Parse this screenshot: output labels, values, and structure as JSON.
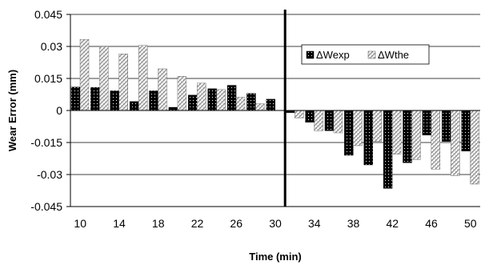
{
  "chart_data": {
    "type": "bar",
    "title": "",
    "xlabel": "Time (min)",
    "ylabel": "Wear Error  (mm)",
    "categories": [
      10,
      12,
      14,
      16,
      18,
      20,
      22,
      24,
      26,
      28,
      30,
      32,
      34,
      36,
      38,
      40,
      42,
      44,
      46,
      48,
      50
    ],
    "x_tick_labels": [
      "10",
      "14",
      "18",
      "22",
      "26",
      "30",
      "34",
      "38",
      "42",
      "46",
      "50"
    ],
    "y_tick_labels": [
      "0.045",
      "0.03",
      "0.015",
      "0",
      "-0.015",
      "-0.03",
      "-0.045"
    ],
    "ylim": [
      -0.045,
      0.045
    ],
    "grid": true,
    "legend_position": "upper-right",
    "divider_after_category": 30,
    "series": [
      {
        "name": "ΔWexp",
        "color": "#000000",
        "pattern": "dotted-black",
        "values": [
          0.011,
          0.0108,
          0.0092,
          0.0042,
          0.0092,
          0.0015,
          0.0072,
          0.0102,
          0.0118,
          0.008,
          0.0053,
          -0.001,
          -0.0055,
          -0.0095,
          -0.021,
          -0.0255,
          -0.0365,
          -0.0245,
          -0.0115,
          -0.0145,
          -0.019
        ]
      },
      {
        "name": "ΔWthe",
        "color": "#888888",
        "pattern": "crosshatch-gray",
        "values": [
          0.0333,
          0.03,
          0.0265,
          0.0305,
          0.0195,
          0.016,
          0.0128,
          0.0098,
          0.0062,
          0.0032,
          0.0,
          -0.0035,
          -0.0095,
          -0.0105,
          -0.0165,
          -0.0145,
          -0.0205,
          -0.023,
          -0.0275,
          -0.0305,
          -0.0345
        ]
      }
    ]
  }
}
